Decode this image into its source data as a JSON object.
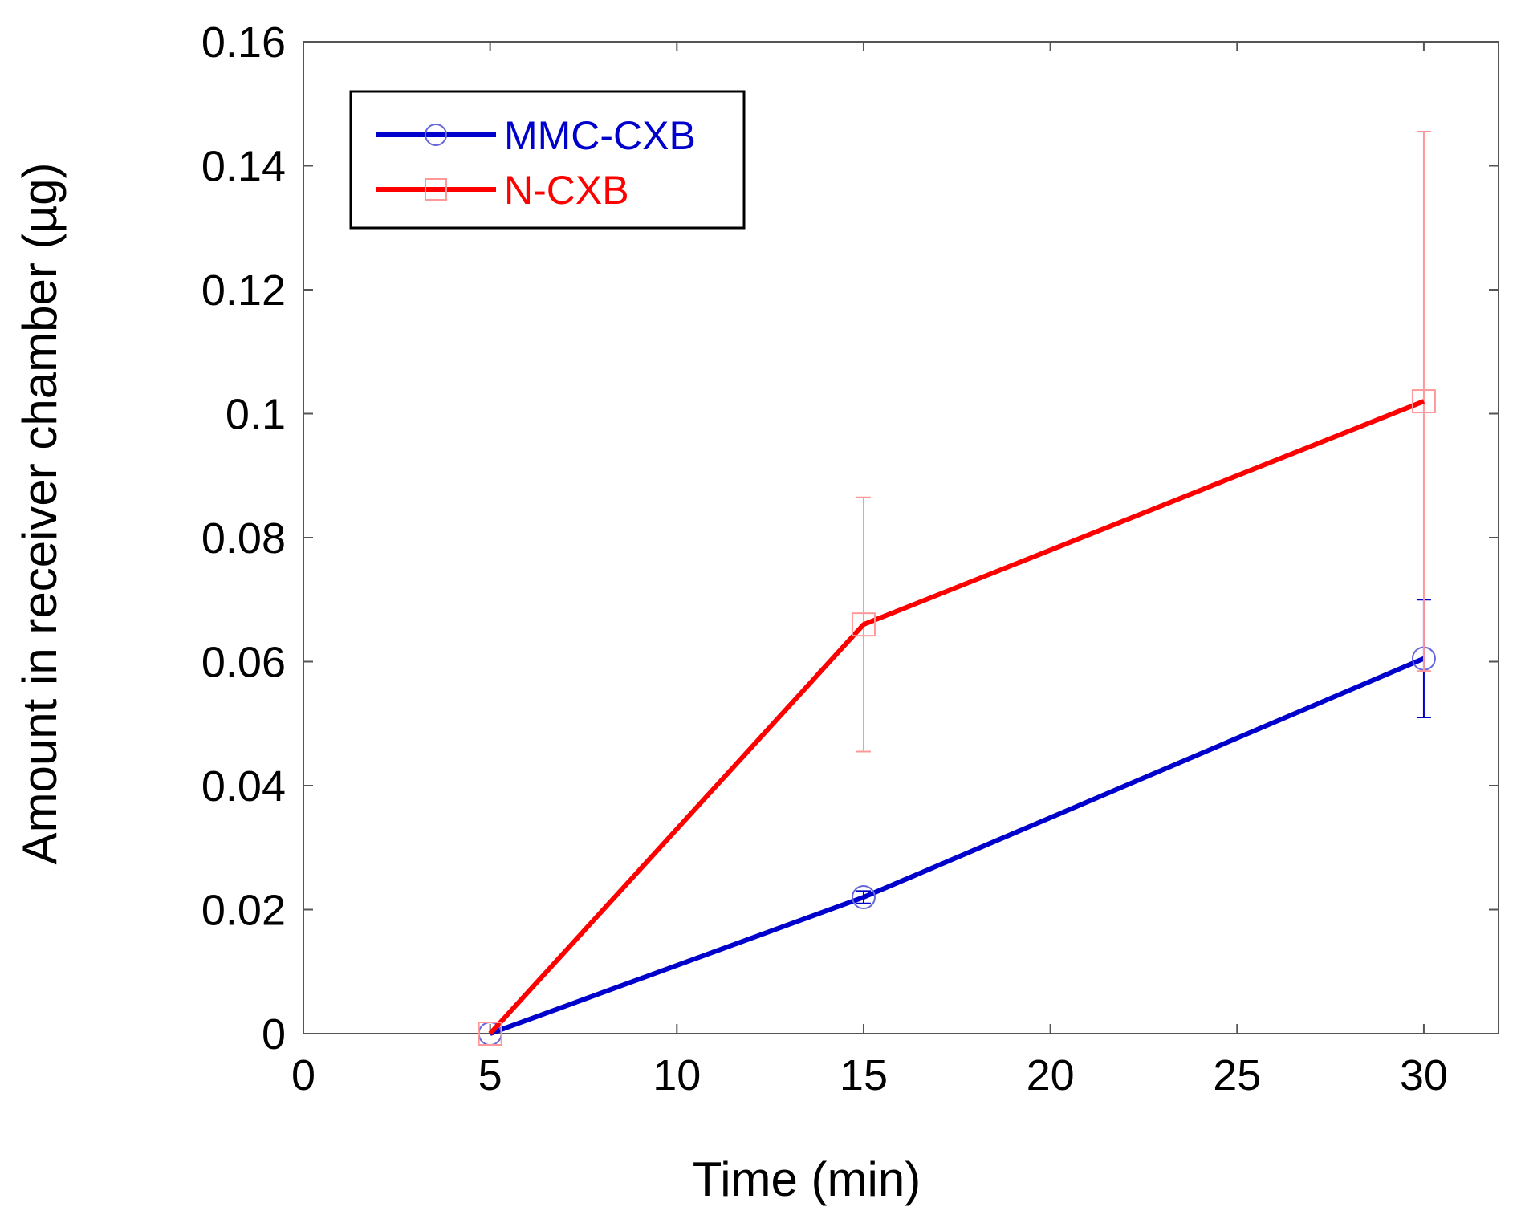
{
  "chart_data": {
    "type": "line",
    "title": "",
    "xlabel": "Time (min)",
    "ylabel": "Amount in receiver chamber (µg)",
    "xlim": [
      0,
      32
    ],
    "ylim": [
      0,
      0.16
    ],
    "xticks": [
      0,
      5,
      10,
      15,
      20,
      25,
      30
    ],
    "yticks": [
      0,
      0.02,
      0.04,
      0.06,
      0.08,
      0.1,
      0.12,
      0.14,
      0.16
    ],
    "xtick_labels": [
      "0",
      "5",
      "10",
      "15",
      "20",
      "25",
      "30"
    ],
    "ytick_labels": [
      "0",
      "0.02",
      "0.04",
      "0.06",
      "0.08",
      "0.1",
      "0.12",
      "0.14",
      "0.16"
    ],
    "grid": false,
    "legend_position": "top-left",
    "series": [
      {
        "name": "MMC-CXB",
        "color": "#0000cc",
        "marker": "circle",
        "x": [
          5,
          15,
          30
        ],
        "y": [
          0,
          0.022,
          0.0605
        ],
        "error": [
          0,
          0.001,
          0.0095
        ]
      },
      {
        "name": "N-CXB",
        "color": "#ff0000",
        "marker": "square",
        "x": [
          5,
          15,
          30
        ],
        "y": [
          0,
          0.066,
          0.102
        ],
        "error": [
          0,
          0.0205,
          0.0435
        ]
      }
    ]
  }
}
